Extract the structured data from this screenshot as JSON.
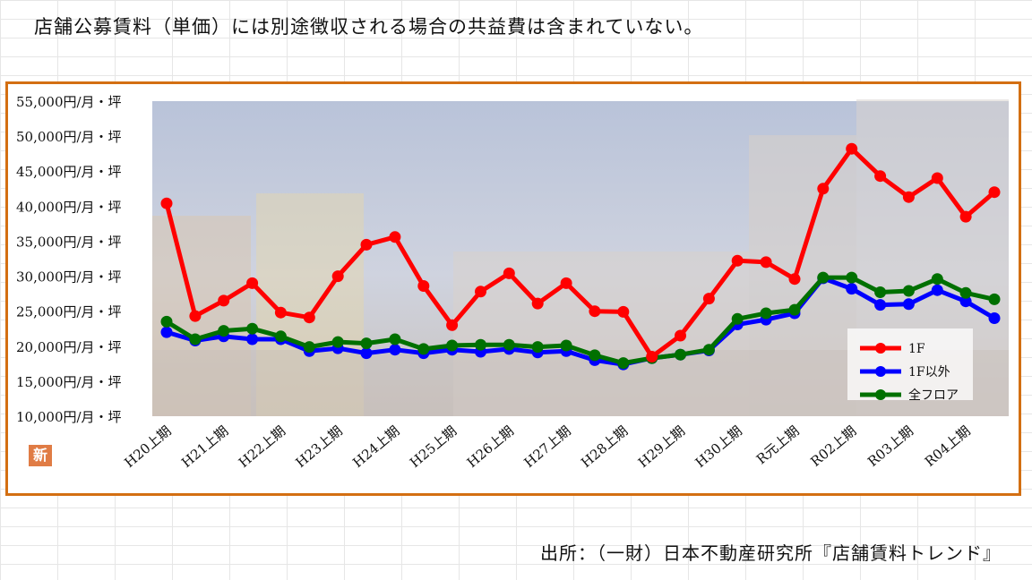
{
  "note": "店舗公募賃料（単価）には別途徴収される場合の共益費は含まれていない。",
  "source": "出所：（一財）日本不動産研究所『店舗賃料トレンド』",
  "badge": "新",
  "colors": {
    "frame": "#d36f12",
    "series_1F": "#ff0000",
    "series_other": "#0000ff",
    "series_all": "#007000",
    "badge": "#e07c45"
  },
  "chart_data": {
    "type": "line",
    "title": "",
    "xlabel": "",
    "ylabel": "",
    "ylim": [
      10000,
      55000
    ],
    "y_ticks": [
      55000,
      50000,
      45000,
      40000,
      35000,
      30000,
      25000,
      20000,
      15000,
      10000
    ],
    "y_tick_labels": [
      "55,000円/月・坪",
      "50,000円/月・坪",
      "45,000円/月・坪",
      "40,000円/月・坪",
      "35,000円/月・坪",
      "30,000円/月・坪",
      "25,000円/月・坪",
      "20,000円/月・坪",
      "15,000円/月・坪",
      "10,000円/月・坪"
    ],
    "x_tick_labels": [
      "H20上期",
      "H21上期",
      "H22上期",
      "H23上期",
      "H24上期",
      "H25上期",
      "H26上期",
      "H27上期",
      "H28上期",
      "H29上期",
      "H30上期",
      "R元上期",
      "R02上期",
      "R03上期",
      "R04上期"
    ],
    "legend_position": "bottom-right",
    "grid": false,
    "series": [
      {
        "name": "1F",
        "color": "#ff0000",
        "values": [
          40400,
          24300,
          26500,
          29000,
          24800,
          24100,
          30000,
          34500,
          35600,
          28600,
          23000,
          27800,
          30400,
          26100,
          29000,
          25000,
          24900,
          18500,
          21500,
          26800,
          32200,
          32000,
          29600,
          42500,
          48200,
          44300,
          41300,
          44000,
          38500,
          42000
        ]
      },
      {
        "name": "1F以外",
        "color": "#0000ff",
        "values": [
          22000,
          20800,
          21400,
          21000,
          21000,
          19300,
          19700,
          19000,
          19500,
          19000,
          19500,
          19200,
          19600,
          19100,
          19300,
          18000,
          17400,
          18300,
          18800,
          19400,
          23100,
          23800,
          24700,
          29700,
          28200,
          25900,
          26000,
          28000,
          26400,
          24000
        ]
      },
      {
        "name": "全フロア",
        "color": "#007000",
        "values": [
          23500,
          21000,
          22200,
          22500,
          21400,
          19900,
          20600,
          20400,
          21000,
          19600,
          20100,
          20200,
          20200,
          19900,
          20100,
          18700,
          17600,
          18300,
          18800,
          19500,
          23900,
          24700,
          25200,
          29800,
          29800,
          27700,
          27900,
          29600,
          27600,
          26700
        ]
      }
    ]
  }
}
